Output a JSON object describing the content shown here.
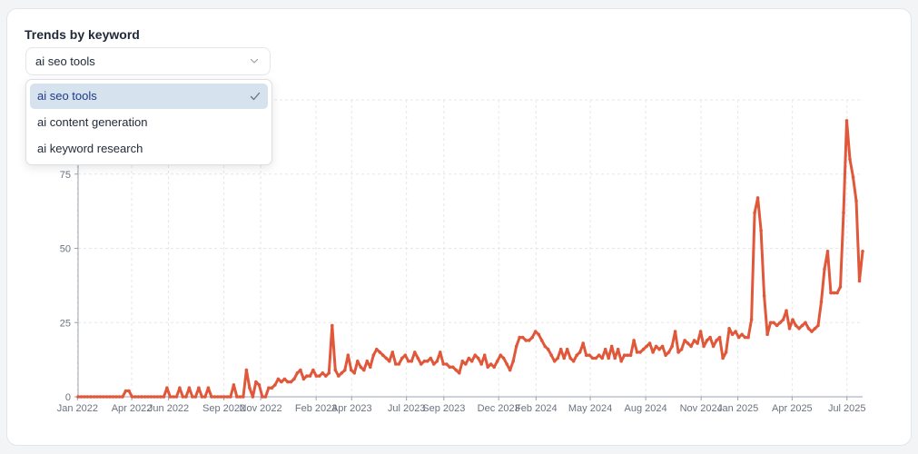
{
  "card": {
    "title": "Trends by keyword",
    "selected_keyword": "ai seo tools",
    "dropdown_options": [
      {
        "label": "ai seo tools",
        "selected": true
      },
      {
        "label": "ai content generation",
        "selected": false
      },
      {
        "label": "ai keyword research",
        "selected": false
      }
    ]
  },
  "colors": {
    "line": "#e0573a",
    "grid": "#e5e7eb",
    "accent_selected_bg": "#d6e2ed"
  },
  "icons": {
    "select": "chevron-down-icon",
    "selected": "check-icon"
  },
  "chart_data": {
    "type": "line",
    "title": "",
    "xlabel": "",
    "ylabel": "",
    "ylim": [
      0,
      100
    ],
    "yticks": [
      0,
      25,
      50,
      75
    ],
    "grid": true,
    "x_tick_labels": [
      "Jan 2022",
      "Apr 2022",
      "Jun 2022",
      "Sep 2022",
      "Nov 2022",
      "Feb 2023",
      "Apr 2023",
      "Jul 2023",
      "Sep 2023",
      "Dec 2023",
      "Feb 2024",
      "May 2024",
      "Aug 2024",
      "Nov 2024",
      "Jan 2025",
      "Apr 2025",
      "Jul 2025"
    ],
    "x_start": "2022-01-02",
    "x_end": "2025-07-27",
    "series": [
      {
        "values": [
          0,
          0,
          0,
          0,
          0,
          0,
          0,
          0,
          0,
          0,
          0,
          0,
          0,
          0,
          0,
          2,
          2,
          0,
          0,
          0,
          0,
          0,
          0,
          0,
          0,
          0,
          0,
          0,
          3,
          0,
          0,
          0,
          3,
          0,
          0,
          3,
          0,
          0,
          3,
          0,
          0,
          3,
          0,
          0,
          0,
          0,
          0,
          0,
          0,
          4,
          0,
          0,
          0,
          9,
          3,
          0,
          5,
          4,
          0,
          0,
          3,
          3,
          4,
          6,
          5,
          6,
          5,
          5,
          6,
          8,
          9,
          6,
          7,
          7,
          9,
          7,
          7,
          8,
          7,
          8,
          24,
          9,
          7,
          8,
          9,
          14,
          9,
          8,
          12,
          10,
          9,
          12,
          10,
          14,
          16,
          15,
          14,
          13,
          12,
          15,
          11,
          11,
          13,
          14,
          12,
          12,
          15,
          13,
          11,
          12,
          12,
          13,
          11,
          12,
          15,
          11,
          11,
          10,
          10,
          9,
          8,
          12,
          11,
          13,
          12,
          14,
          13,
          11,
          14,
          10,
          11,
          10,
          12,
          14,
          13,
          11,
          9,
          12,
          17,
          20,
          20,
          19,
          19,
          20,
          22,
          21,
          19,
          17,
          16,
          14,
          12,
          13,
          16,
          13,
          16,
          13,
          12,
          14,
          15,
          18,
          14,
          14,
          13,
          13,
          14,
          13,
          16,
          13,
          17,
          13,
          16,
          12,
          14,
          14,
          14,
          19,
          15,
          15,
          16,
          17,
          18,
          15,
          17,
          16,
          17,
          14,
          15,
          17,
          22,
          15,
          16,
          19,
          18,
          17,
          19,
          18,
          22,
          17,
          19,
          20,
          17,
          19,
          20,
          13,
          15,
          23,
          21,
          22,
          20,
          21,
          20,
          20,
          26,
          62,
          67,
          56,
          34,
          21,
          25,
          25,
          24,
          25,
          26,
          29,
          23,
          26,
          24,
          23,
          24,
          25,
          23,
          22,
          23,
          24,
          32,
          43,
          49,
          35,
          35,
          35,
          37,
          62,
          93,
          80,
          74,
          66,
          39,
          49
        ]
      }
    ]
  }
}
